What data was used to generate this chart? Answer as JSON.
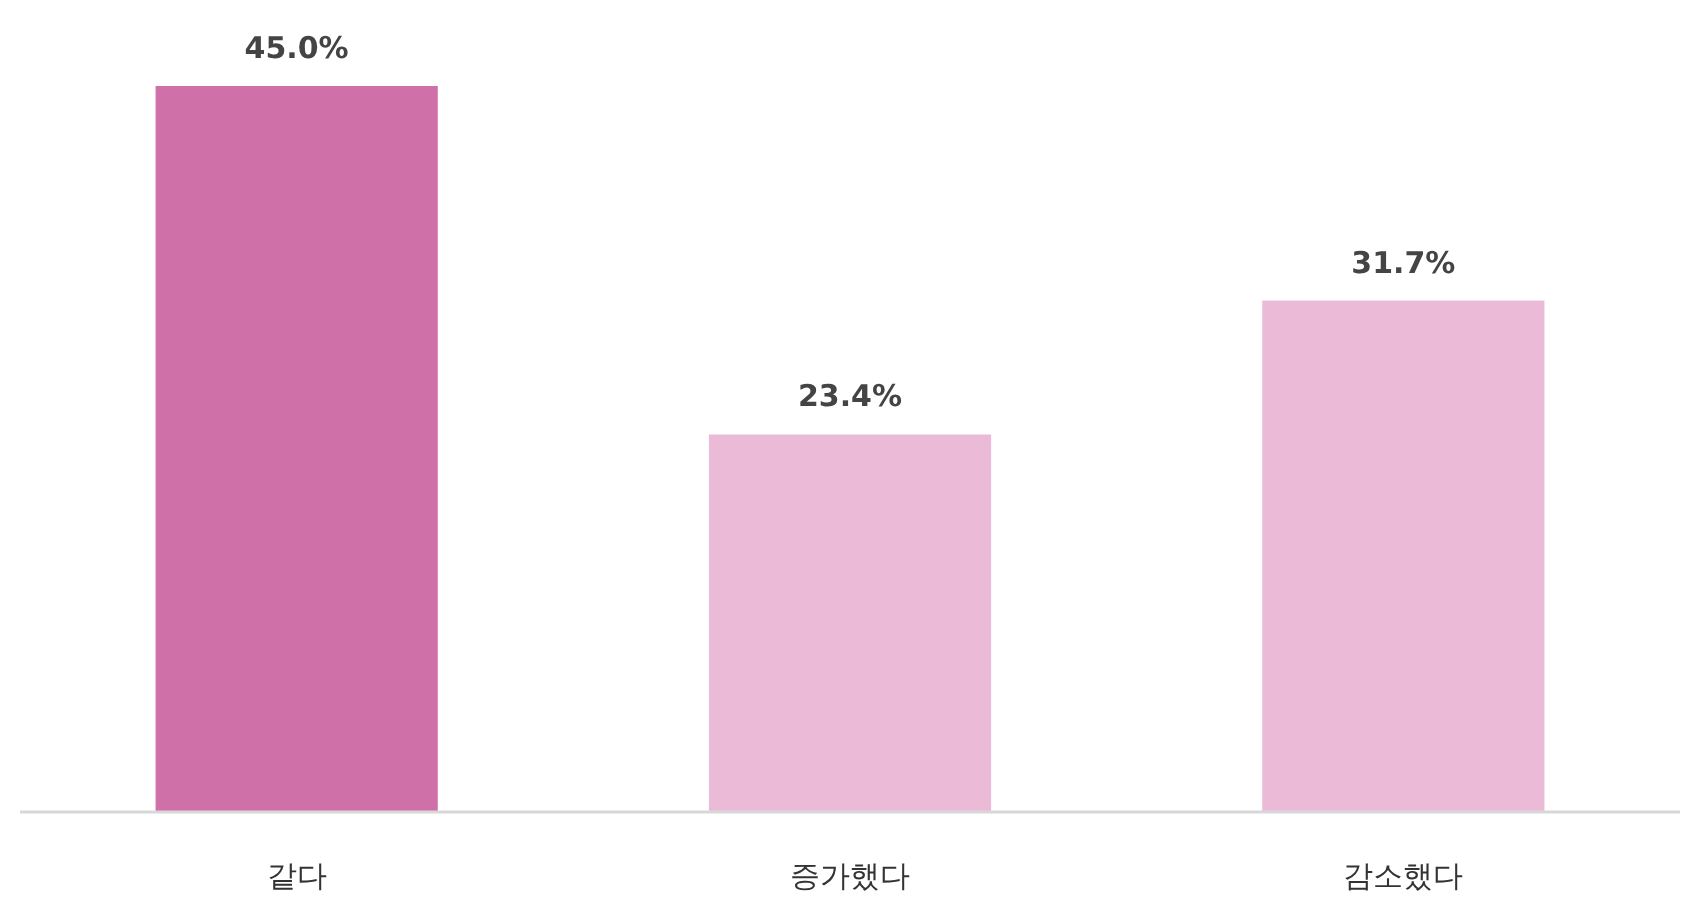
{
  "chart_data": {
    "type": "bar",
    "categories": [
      "같다",
      "증가했다",
      "감소했다"
    ],
    "values": [
      45.0,
      23.4,
      31.7
    ],
    "colors": [
      "#cf70a9",
      "#eabad7",
      "#eabad7"
    ],
    "value_labels": [
      "45.0%",
      "23.4%",
      "31.7%"
    ]
  }
}
